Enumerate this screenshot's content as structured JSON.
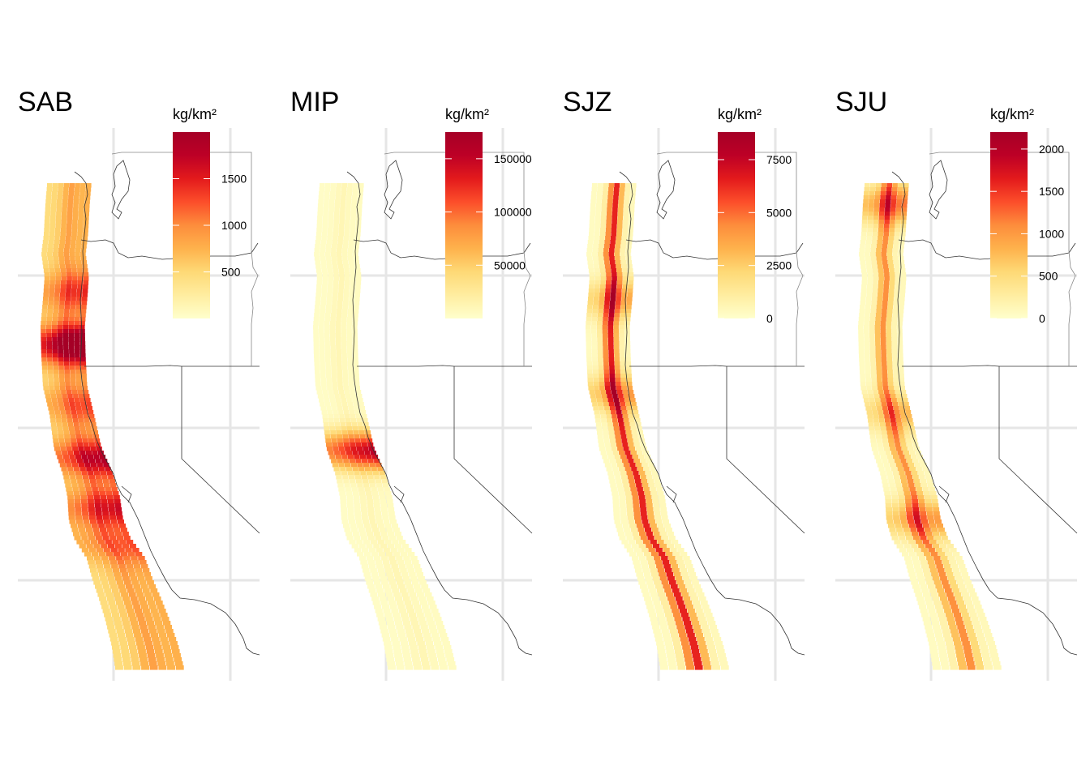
{
  "figure": {
    "legend_unit": "kg/km²",
    "color_scale": [
      "#ffffcc",
      "#ffeda0",
      "#fed976",
      "#feb24c",
      "#fd8d3c",
      "#fc4e2a",
      "#e31a1c",
      "#bd0026",
      "#a50026"
    ],
    "grid_color": "#e6e6e6",
    "border_color": "#333333"
  },
  "panels": [
    {
      "id": "sab",
      "title": "SAB",
      "legend": {
        "ticks": [
          500,
          1000,
          1500
        ],
        "labels": [
          "500",
          "1000",
          "1500"
        ],
        "min": 0,
        "max": 2000
      },
      "density": {
        "base": 0.38,
        "band": 0.12,
        "hotspots": [
          [
            0.28,
            0.35
          ],
          [
            0.42,
            0.9
          ],
          [
            0.58,
            0.28
          ],
          [
            0.72,
            0.55
          ],
          [
            0.85,
            0.45
          ],
          [
            0.95,
            0.25
          ]
        ]
      }
    },
    {
      "id": "mip",
      "title": "MIP",
      "legend": {
        "ticks": [
          50000,
          100000,
          150000
        ],
        "labels": [
          "50000",
          "100000",
          "150000"
        ],
        "min": 0,
        "max": 175000
      },
      "density": {
        "base": 0.03,
        "band": 0.04,
        "hotspots": [
          [
            0.7,
            0.85
          ]
        ]
      }
    },
    {
      "id": "sjz",
      "title": "SJZ",
      "legend": {
        "ticks": [
          0,
          2500,
          5000,
          7500
        ],
        "labels": [
          "0",
          "2500",
          "5000",
          "7500"
        ],
        "min": 0,
        "max": 8800
      },
      "density": {
        "base": 0.05,
        "band": 0.7,
        "hotspots": [
          [
            0.3,
            0.35
          ],
          [
            0.55,
            0.4
          ]
        ]
      }
    },
    {
      "id": "sju",
      "title": "SJU",
      "legend": {
        "ticks": [
          0,
          500,
          1000,
          1500,
          2000
        ],
        "labels": [
          "0",
          "500",
          "1000",
          "1500",
          "2000"
        ],
        "min": 0,
        "max": 2200
      },
      "density": {
        "base": 0.05,
        "band": 0.45,
        "hotspots": [
          [
            0.05,
            0.5
          ],
          [
            0.6,
            0.3
          ],
          [
            0.88,
            0.4
          ]
        ]
      }
    }
  ]
}
